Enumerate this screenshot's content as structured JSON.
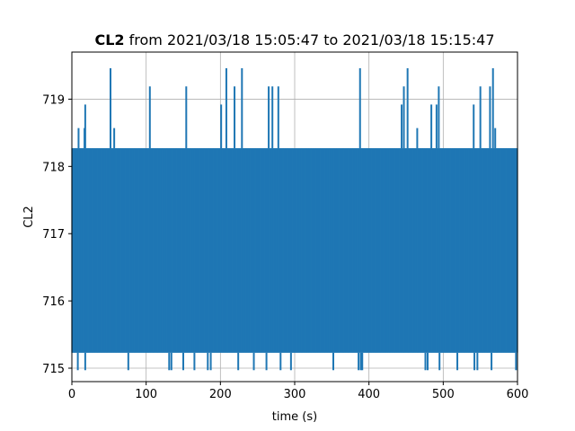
{
  "chart_data": {
    "type": "line",
    "title_bold": "CL2",
    "title_rest": " from 2021/03/18 15:05:47 to 2021/03/18 15:15:47",
    "xlabel": "time (s)",
    "ylabel": "CL2",
    "xlim": [
      0,
      600
    ],
    "ylim": [
      714.8,
      719.7
    ],
    "xticks": [
      0,
      100,
      200,
      300,
      400,
      500,
      600
    ],
    "yticks": [
      715,
      716,
      717,
      718,
      719
    ],
    "grid": true,
    "color": "#1f77b4",
    "band": {
      "low": 715.23,
      "high": 718.27
    },
    "spikes_high": [
      {
        "x": 9,
        "y": 718.57
      },
      {
        "x": 17,
        "y": 718.57
      },
      {
        "x": 18,
        "y": 718.92
      },
      {
        "x": 52,
        "y": 719.46
      },
      {
        "x": 57,
        "y": 718.57
      },
      {
        "x": 105,
        "y": 719.19
      },
      {
        "x": 154,
        "y": 719.19
      },
      {
        "x": 201,
        "y": 718.92
      },
      {
        "x": 208,
        "y": 719.46
      },
      {
        "x": 219,
        "y": 719.19
      },
      {
        "x": 229,
        "y": 719.46
      },
      {
        "x": 265,
        "y": 719.19
      },
      {
        "x": 270,
        "y": 719.19
      },
      {
        "x": 278,
        "y": 719.19
      },
      {
        "x": 388,
        "y": 719.46
      },
      {
        "x": 444,
        "y": 718.92
      },
      {
        "x": 447,
        "y": 719.19
      },
      {
        "x": 452,
        "y": 719.46
      },
      {
        "x": 465,
        "y": 718.57
      },
      {
        "x": 484,
        "y": 718.92
      },
      {
        "x": 491,
        "y": 718.92
      },
      {
        "x": 494,
        "y": 719.19
      },
      {
        "x": 541,
        "y": 718.92
      },
      {
        "x": 550,
        "y": 719.19
      },
      {
        "x": 563,
        "y": 719.19
      },
      {
        "x": 567,
        "y": 719.46
      },
      {
        "x": 570,
        "y": 718.57
      }
    ],
    "spikes_low": [
      {
        "x": 8,
        "y": 714.97
      },
      {
        "x": 18,
        "y": 714.97
      },
      {
        "x": 76,
        "y": 714.97
      },
      {
        "x": 131,
        "y": 714.97
      },
      {
        "x": 134,
        "y": 714.97
      },
      {
        "x": 150,
        "y": 714.97
      },
      {
        "x": 165,
        "y": 714.97
      },
      {
        "x": 183,
        "y": 714.97
      },
      {
        "x": 187,
        "y": 714.97
      },
      {
        "x": 224,
        "y": 714.97
      },
      {
        "x": 245,
        "y": 714.97
      },
      {
        "x": 262,
        "y": 714.97
      },
      {
        "x": 281,
        "y": 714.97
      },
      {
        "x": 295,
        "y": 714.97
      },
      {
        "x": 352,
        "y": 714.97
      },
      {
        "x": 386,
        "y": 714.97
      },
      {
        "x": 389,
        "y": 714.97
      },
      {
        "x": 391,
        "y": 714.97
      },
      {
        "x": 476,
        "y": 714.97
      },
      {
        "x": 479,
        "y": 714.97
      },
      {
        "x": 495,
        "y": 714.97
      },
      {
        "x": 519,
        "y": 714.97
      },
      {
        "x": 542,
        "y": 714.97
      },
      {
        "x": 546,
        "y": 714.97
      },
      {
        "x": 565,
        "y": 714.97
      },
      {
        "x": 598,
        "y": 714.97
      }
    ]
  }
}
